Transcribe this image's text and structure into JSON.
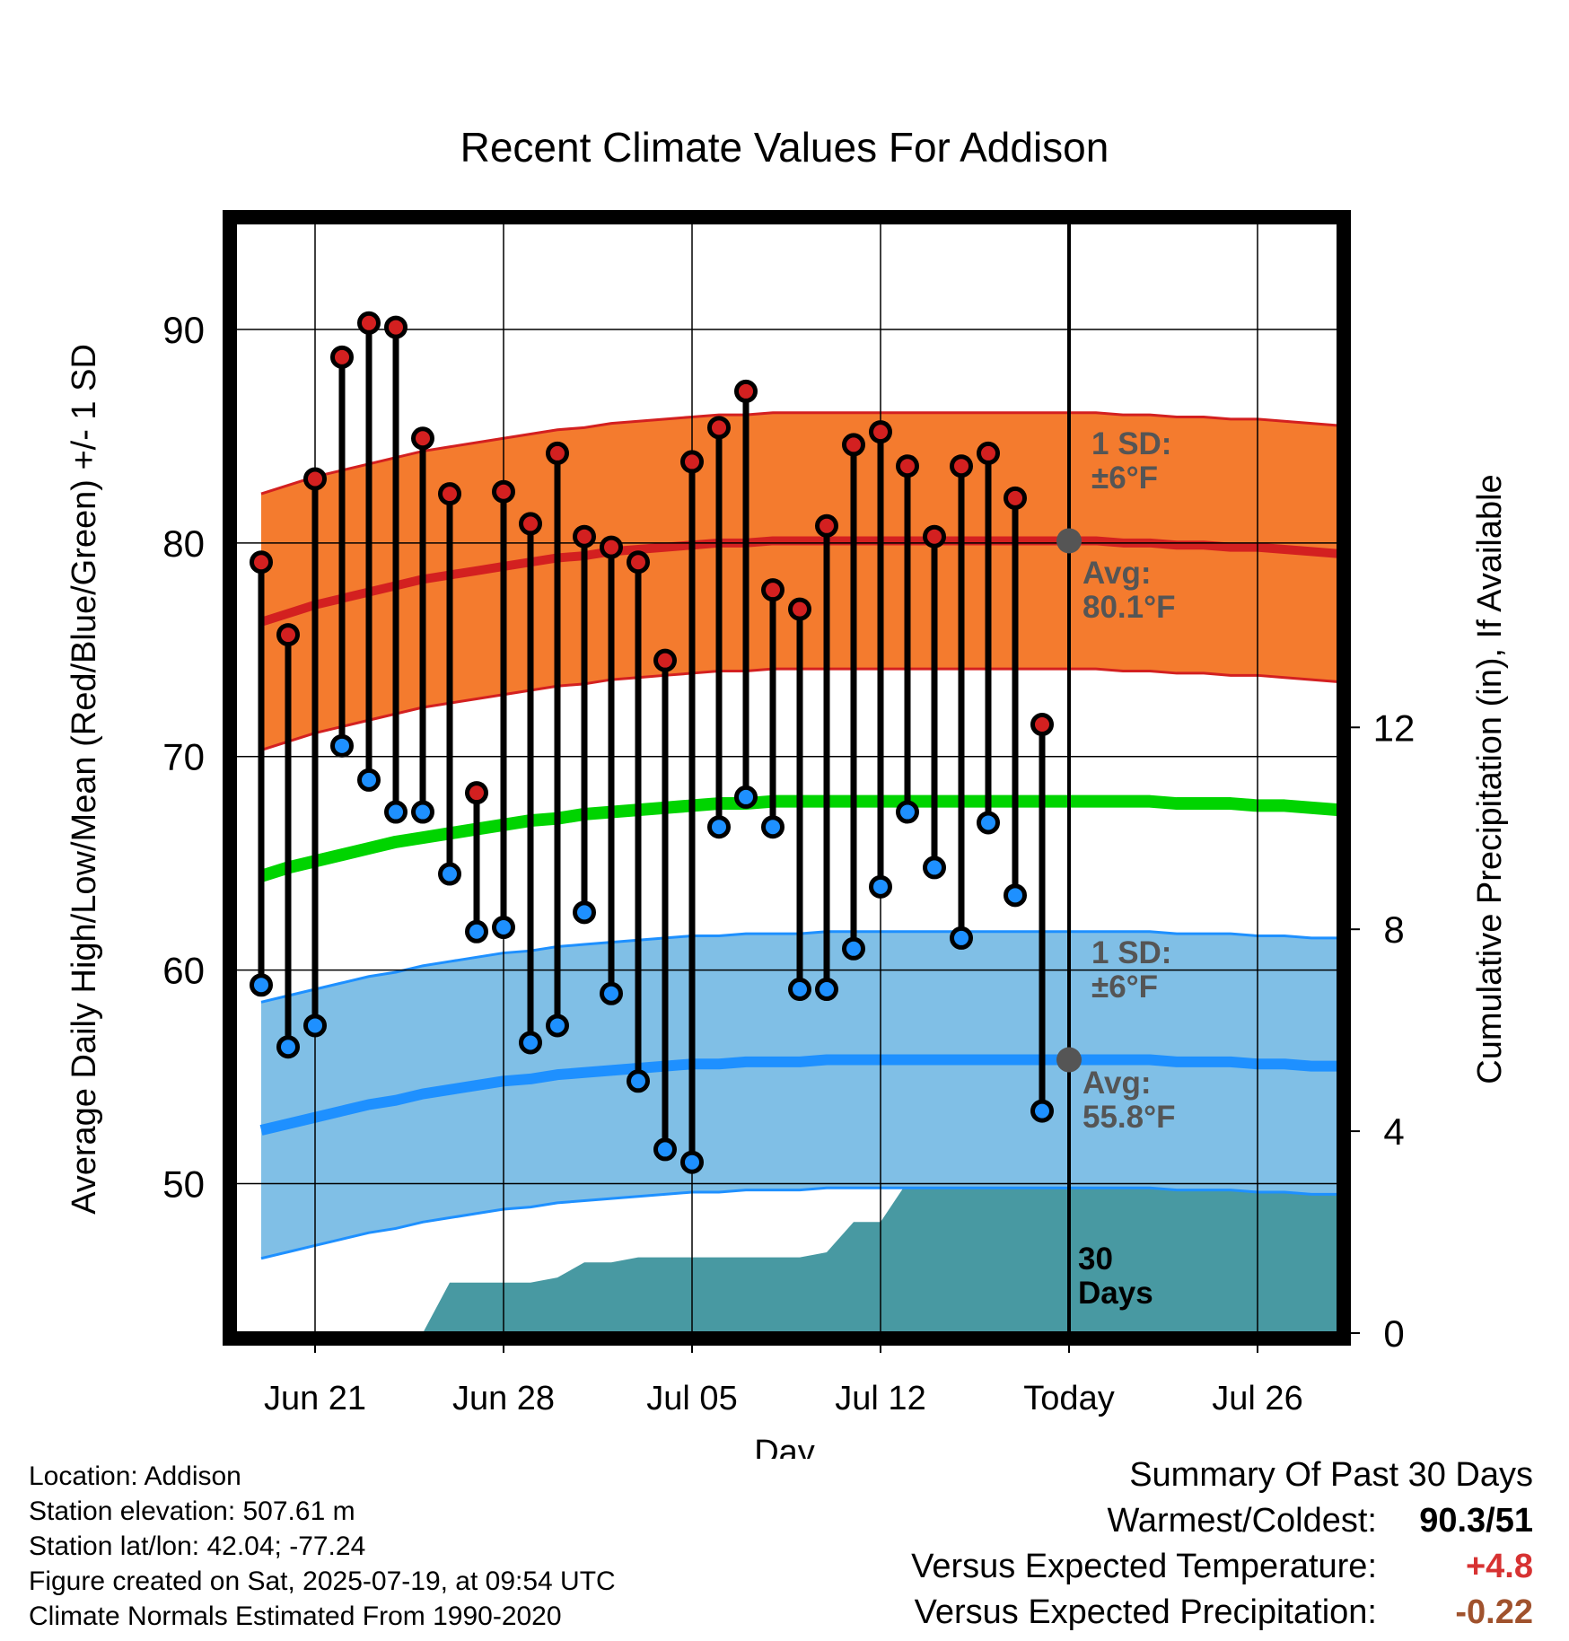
{
  "chart_data": {
    "type": "line",
    "title": "Recent Climate Values For Addison",
    "xlabel": "Day",
    "ylabel": "Average Daily High/Low/Mean (Red/Blue/Green) +/- 1 SD",
    "y2label": "Cumulative Precipitation (in), If Available",
    "ylim": [
      43,
      95
    ],
    "y2lim": [
      0,
      22
    ],
    "x_tick_labels": [
      "Jun 21",
      "Jun 28",
      "Jul 05",
      "Jul 12",
      "Today",
      "Jul 26"
    ],
    "y_ticks": [
      50,
      60,
      70,
      80,
      90
    ],
    "y2_ticks": [
      0,
      4,
      8,
      12
    ],
    "grid": true,
    "today_index": 30,
    "days_shown": 41,
    "observed": {
      "highs": [
        79.1,
        75.7,
        83.0,
        88.7,
        90.3,
        90.1,
        84.9,
        82.3,
        68.3,
        82.4,
        80.9,
        84.2,
        80.3,
        79.8,
        79.1,
        74.5,
        83.8,
        85.4,
        87.1,
        77.8,
        76.9,
        80.8,
        84.6,
        85.2,
        83.6,
        80.3,
        83.6,
        84.2,
        82.1,
        71.5
      ],
      "lows": [
        59.3,
        56.4,
        57.4,
        70.5,
        68.9,
        67.4,
        67.4,
        64.5,
        61.8,
        62.0,
        56.6,
        57.4,
        62.7,
        58.9,
        54.8,
        51.6,
        51.0,
        66.7,
        68.1,
        66.7,
        59.1,
        59.1,
        61.0,
        63.9,
        67.4,
        64.8,
        61.5,
        66.9,
        63.5,
        53.4
      ]
    },
    "normals": {
      "high_avg": [
        76.3,
        76.7,
        77.1,
        77.4,
        77.7,
        78.0,
        78.3,
        78.5,
        78.7,
        78.9,
        79.1,
        79.3,
        79.4,
        79.6,
        79.7,
        79.8,
        79.9,
        80.0,
        80.0,
        80.1,
        80.1,
        80.1,
        80.1,
        80.1,
        80.1,
        80.1,
        80.1,
        80.1,
        80.1,
        80.1,
        80.1,
        80.1,
        80.0,
        80.0,
        79.9,
        79.9,
        79.8,
        79.8,
        79.7,
        79.6,
        79.5
      ],
      "high_sd": 6,
      "low_avg": [
        52.5,
        52.8,
        53.1,
        53.4,
        53.7,
        53.9,
        54.2,
        54.4,
        54.6,
        54.8,
        54.9,
        55.1,
        55.2,
        55.3,
        55.4,
        55.5,
        55.6,
        55.6,
        55.7,
        55.7,
        55.7,
        55.8,
        55.8,
        55.8,
        55.8,
        55.8,
        55.8,
        55.8,
        55.8,
        55.8,
        55.8,
        55.8,
        55.8,
        55.8,
        55.7,
        55.7,
        55.7,
        55.6,
        55.6,
        55.5,
        55.5
      ],
      "low_sd": 6,
      "mean": [
        64.4,
        64.8,
        65.1,
        65.4,
        65.7,
        66.0,
        66.2,
        66.4,
        66.6,
        66.8,
        67.0,
        67.1,
        67.3,
        67.4,
        67.5,
        67.6,
        67.7,
        67.8,
        67.8,
        67.9,
        67.9,
        67.9,
        67.9,
        67.9,
        67.9,
        67.9,
        67.9,
        67.9,
        67.9,
        67.9,
        67.9,
        67.9,
        67.9,
        67.9,
        67.8,
        67.8,
        67.8,
        67.7,
        67.7,
        67.6,
        67.5
      ]
    },
    "precip_cumulative": [
      0,
      0,
      0,
      0,
      0,
      0,
      0,
      1.0,
      1.0,
      1.0,
      1.0,
      1.1,
      1.4,
      1.4,
      1.5,
      1.5,
      1.5,
      1.5,
      1.5,
      1.5,
      1.5,
      1.6,
      2.2,
      2.2,
      3.0,
      3.9,
      3.9,
      4.2,
      4.2,
      4.2,
      4.2,
      4.2,
      4.2,
      4.2,
      4.2,
      4.2,
      4.2,
      4.2,
      4.2,
      4.2,
      4.2
    ],
    "annotations": {
      "high_sd": "1 SD:\n±6°F",
      "high_avg": "Avg:\n80.1°F",
      "low_sd": "1 SD:\n±6°F",
      "low_avg": "Avg:\n55.8°F",
      "window": "30\nDays"
    },
    "colors": {
      "high_band": "#f47b2e",
      "high_line": "#d32020",
      "low_band": "#80bfe6",
      "low_line": "#1e90ff",
      "mean_line": "#00d400",
      "precip": "#4899a2",
      "high_dot": "#d32020",
      "low_dot": "#1e90ff",
      "annotation": "#555555"
    }
  },
  "footer": {
    "location": "Location: Addison",
    "elevation": "Station elevation: 507.61 m",
    "latlon": "Station lat/lon: 42.04; -77.24",
    "created": "Figure created on Sat, 2025-07-19, at 09:54 UTC",
    "normals": "Climate Normals Estimated From 1990-2020"
  },
  "summary": {
    "title": "Summary Of Past 30 Days",
    "warm_label": "Warmest/Coldest:",
    "warm_value": "90.3/51",
    "temp_label": "Versus Expected Temperature:",
    "temp_value": "+4.8",
    "precip_label": "Versus Expected Precipitation:",
    "precip_value": "-0.22"
  }
}
